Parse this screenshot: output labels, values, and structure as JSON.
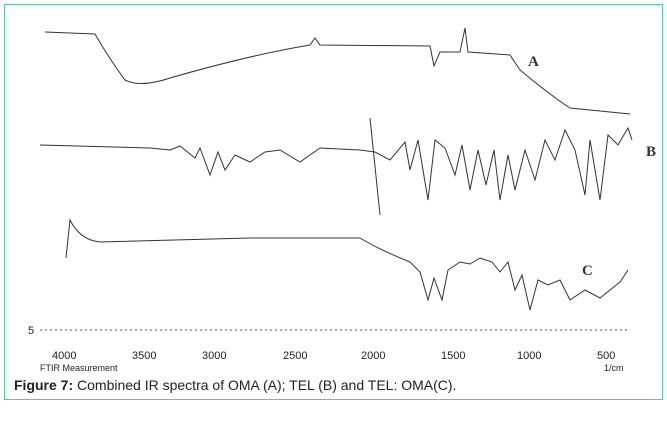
{
  "figure": {
    "spectrum_labels": [
      "A",
      "B",
      "C"
    ],
    "axis": {
      "ticks": [
        "4000",
        "3500",
        "3000",
        "2500",
        "2000",
        "1500",
        "1000",
        "500"
      ],
      "unit": "1/cm",
      "left_mark": "5",
      "name": "FTIR Measurement"
    }
  },
  "caption": {
    "label": "Figure 7:",
    "text": "Combined IR spectra of OMA (A); TEL (B) and TEL: OMA(C)."
  }
}
